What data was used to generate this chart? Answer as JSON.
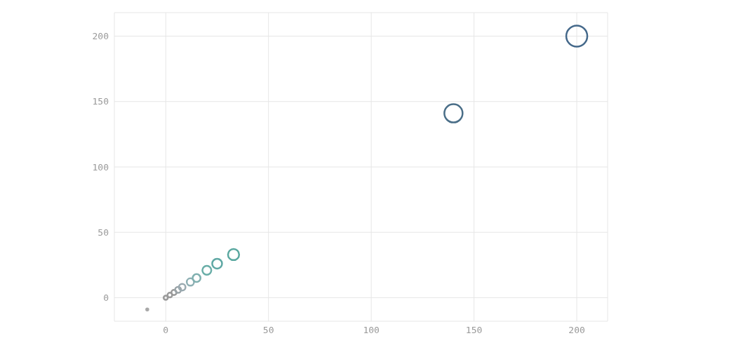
{
  "chart_data": {
    "type": "bubble",
    "x": [
      -9,
      0,
      2,
      4,
      6,
      8,
      12,
      15,
      20,
      25,
      33,
      140,
      200
    ],
    "values": [
      -9,
      0,
      2,
      4,
      6,
      8,
      12,
      15,
      21,
      26,
      33,
      141,
      200
    ],
    "sizes": [
      0.01,
      0.04,
      0.05,
      0.06,
      0.08,
      0.1,
      0.12,
      0.14,
      0.18,
      0.22,
      0.28,
      0.75,
      1
    ],
    "colors": [
      "#a8a8a8",
      "#9a9a9a",
      "#9a9a9a",
      "#9a9a9a",
      "#9aa4a8",
      "#9aaab0",
      "#8fb0b4",
      "#80b0b0",
      "#6aaea8",
      "#5fa8a4",
      "#5aa8a0",
      "#4a6e88",
      "#44688a"
    ],
    "xlim": [
      -25,
      215
    ],
    "ylim": [
      -18,
      218
    ],
    "xticks": [
      0,
      50,
      100,
      150,
      200
    ],
    "yticks": [
      0,
      50,
      100,
      150,
      200
    ],
    "grid": true,
    "marker": "circle"
  }
}
